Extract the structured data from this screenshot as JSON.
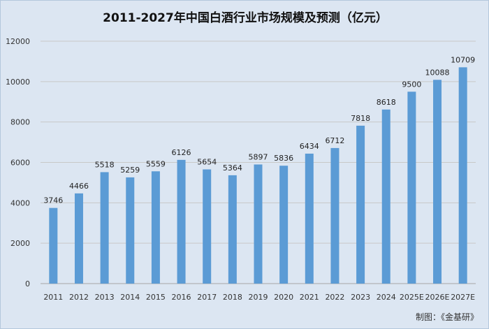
{
  "chart_data": {
    "type": "bar",
    "title": "2011-2027年中国白酒行业市场规模及预测（亿元）",
    "categories": [
      "2011",
      "2012",
      "2013",
      "2014",
      "2015",
      "2016",
      "2017",
      "2018",
      "2019",
      "2020",
      "2021",
      "2022",
      "2023",
      "2024",
      "2025E",
      "2026E",
      "2027E"
    ],
    "values": [
      3746,
      4466,
      5518,
      5259,
      5559,
      6126,
      5654,
      5364,
      5897,
      5836,
      6434,
      6712,
      7818,
      8618,
      9500,
      10088,
      10709
    ],
    "ylim": [
      0,
      12000
    ],
    "yticks": [
      0,
      2000,
      4000,
      6000,
      8000,
      10000,
      12000
    ],
    "grid": true,
    "bar_color": "#5b9bd5",
    "background": "#dce6f2",
    "source_note": "制图：《金基研》"
  }
}
